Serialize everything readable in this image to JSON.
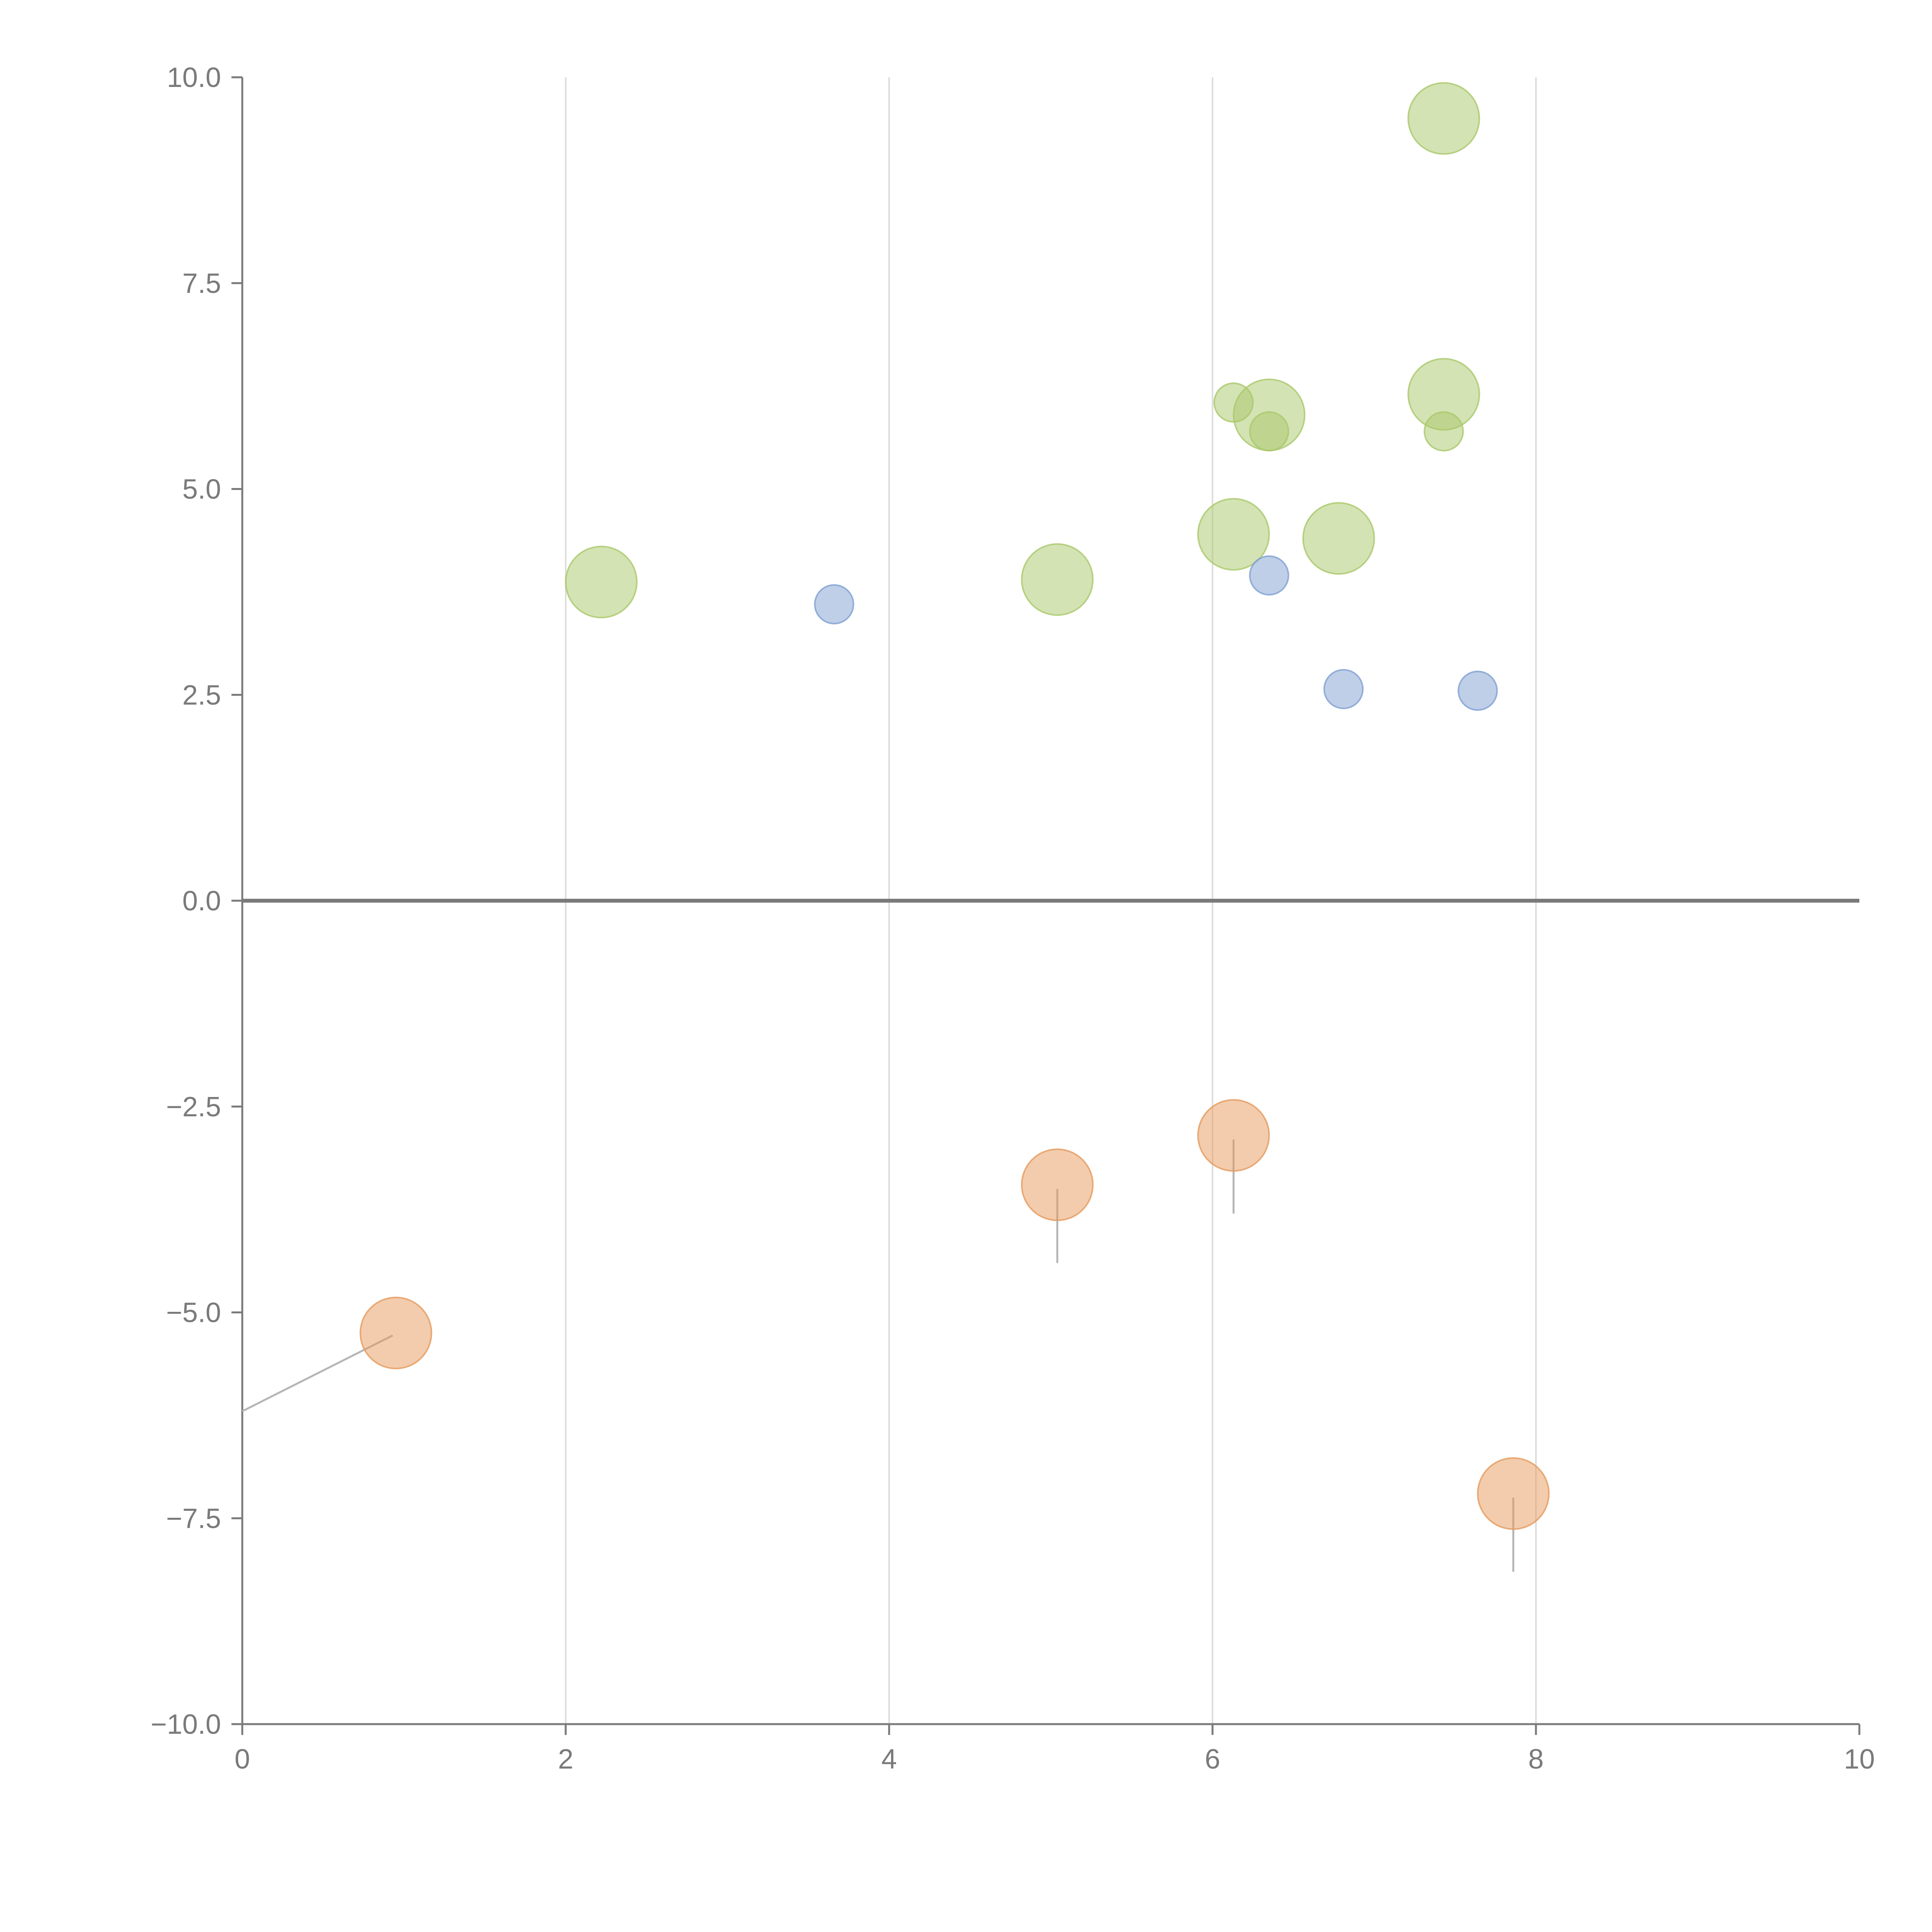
{
  "chart_data": {
    "type": "scatter",
    "title": "",
    "xlabel": "",
    "ylabel": "",
    "xlim": [
      0,
      10
    ],
    "ylim": [
      -10,
      10
    ],
    "grid": "vertical",
    "x_ticks": [
      0,
      2,
      4,
      6,
      8,
      10
    ],
    "x_tick_labels": [
      "0",
      "2",
      "4",
      "6",
      "8",
      "10"
    ],
    "y_ticks": [
      10,
      7.5,
      5,
      2.5,
      0,
      -2.5,
      -5,
      -7.5,
      -10
    ],
    "y_tick_labels": [
      "10.0",
      "7.5",
      "5.0",
      "2.5",
      "0.0",
      "−2.5",
      "−5.0",
      "−7.5",
      "−10.0"
    ],
    "series": [
      {
        "name": "green",
        "color": "#a9c86a",
        "points": [
          {
            "x": 7.43,
            "y": 9.5,
            "size": "large"
          },
          {
            "x": 7.43,
            "y": 6.15,
            "size": "large"
          },
          {
            "x": 7.43,
            "y": 5.7,
            "size": "small"
          },
          {
            "x": 6.13,
            "y": 6.05,
            "size": "small"
          },
          {
            "x": 6.35,
            "y": 5.9,
            "size": "large"
          },
          {
            "x": 6.35,
            "y": 5.7,
            "size": "small"
          },
          {
            "x": 6.13,
            "y": 4.45,
            "size": "large"
          },
          {
            "x": 6.78,
            "y": 4.4,
            "size": "large"
          },
          {
            "x": 5.04,
            "y": 3.9,
            "size": "large"
          },
          {
            "x": 2.22,
            "y": 3.87,
            "size": "large"
          }
        ]
      },
      {
        "name": "blue",
        "color": "#7f9fd1",
        "points": [
          {
            "x": 3.66,
            "y": 3.6,
            "size": "small"
          },
          {
            "x": 6.35,
            "y": 3.95,
            "size": "small"
          },
          {
            "x": 6.81,
            "y": 2.57,
            "size": "small"
          },
          {
            "x": 7.64,
            "y": 2.55,
            "size": "small"
          }
        ]
      },
      {
        "name": "orange",
        "color": "#e59a5c",
        "points": [
          {
            "x": 0.95,
            "y": -5.25,
            "size": "large"
          },
          {
            "x": 5.04,
            "y": -3.45,
            "size": "large"
          },
          {
            "x": 6.13,
            "y": -2.85,
            "size": "large"
          },
          {
            "x": 7.86,
            "y": -7.2,
            "size": "large"
          }
        ]
      }
    ],
    "leaders": [
      {
        "color": "gray",
        "from": [
          0.93,
          -5.28
        ],
        "to": [
          0.0,
          -6.2
        ]
      },
      {
        "color": "gray",
        "from": [
          5.04,
          -3.5
        ],
        "to": [
          5.04,
          -4.4
        ]
      },
      {
        "color": "gray",
        "from": [
          6.13,
          -2.9
        ],
        "to": [
          6.13,
          -3.8
        ]
      },
      {
        "color": "gray",
        "from": [
          7.86,
          -7.25
        ],
        "to": [
          7.86,
          -8.15
        ]
      },
      {
        "color": "white",
        "from": [
          7.48,
          9.5
        ],
        "to": [
          7.55,
          9.6
        ]
      },
      {
        "color": "white",
        "from": [
          7.46,
          6.25
        ],
        "to": [
          7.52,
          6.55
        ]
      },
      {
        "color": "white",
        "from": [
          6.35,
          5.95
        ],
        "to": [
          6.27,
          6.2
        ]
      },
      {
        "color": "white",
        "from": [
          6.16,
          4.4
        ],
        "to": [
          6.4,
          3.8
        ]
      },
      {
        "color": "white",
        "from": [
          5.08,
          3.87
        ],
        "to": [
          5.25,
          3.8
        ]
      },
      {
        "color": "white",
        "from": [
          6.8,
          2.5
        ],
        "to": [
          6.92,
          2.35
        ]
      }
    ]
  }
}
